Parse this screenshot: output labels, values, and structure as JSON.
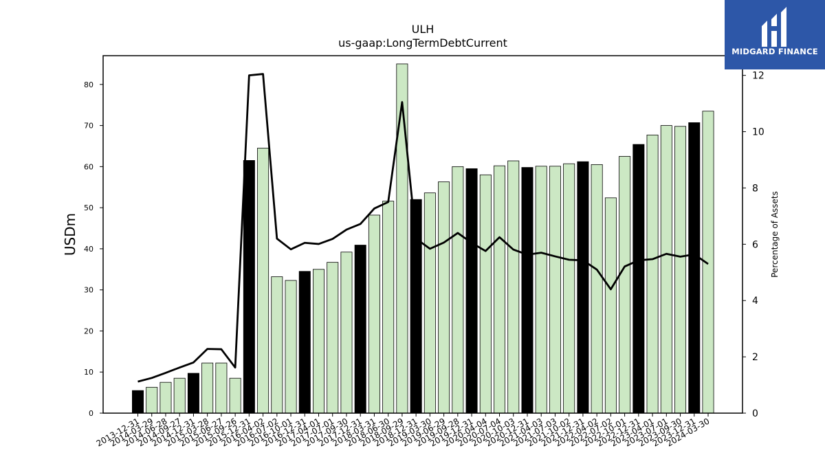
{
  "chart_data": {
    "type": "bar",
    "title": "ULH",
    "subtitle": "us-gaap:LongTermDebtCurrent",
    "ylabel": "USDm",
    "y2label": "Percentage of Assets",
    "ylim": [
      0,
      87
    ],
    "y2lim": [
      0,
      12.7
    ],
    "yticks": [
      0,
      10,
      20,
      30,
      40,
      50,
      60,
      70,
      80
    ],
    "y2ticks": [
      0,
      2,
      4,
      6,
      8,
      10,
      12
    ],
    "categories": [
      "2013-12-31",
      "2014-03-29",
      "2014-06-28",
      "2014-09-27",
      "2014-12-31",
      "2015-03-28",
      "2015-06-27",
      "2015-09-26",
      "2015-12-31",
      "2016-04-02",
      "2016-07-02",
      "2016-10-01",
      "2016-12-31",
      "2017-04-01",
      "2017-07-01",
      "2017-09-30",
      "2017-12-31",
      "2018-03-31",
      "2018-06-30",
      "2018-09-29",
      "2018-12-31",
      "2019-03-30",
      "2019-06-29",
      "2019-09-28",
      "2019-12-31",
      "2020-04-04",
      "2020-07-04",
      "2020-10-03",
      "2020-12-31",
      "2021-04-03",
      "2021-07-03",
      "2021-10-02",
      "2021-12-31",
      "2022-04-02",
      "2022-07-02",
      "2022-10-01",
      "2022-12-31",
      "2023-04-01",
      "2023-07-01",
      "2023-09-30",
      "2023-12-31",
      "2024-03-30"
    ],
    "series": [
      {
        "type": "bar",
        "values": [
          5.5,
          6.3,
          7.5,
          8.5,
          9.7,
          12.2,
          12.2,
          8.5,
          61.5,
          64.5,
          33.2,
          32.3,
          34.5,
          35.0,
          36.7,
          39.2,
          40.9,
          48.2,
          51.6,
          85.0,
          52.0,
          53.6,
          56.3,
          60.0,
          59.5,
          58.0,
          60.2,
          61.4,
          59.8,
          60.1,
          60.1,
          60.7,
          61.2,
          60.5,
          52.4,
          62.5,
          65.4,
          67.7,
          70.0,
          69.8,
          70.7,
          73.5
        ]
      },
      {
        "type": "line",
        "axis": "right",
        "values": [
          1.12,
          1.25,
          1.43,
          1.62,
          1.8,
          2.28,
          2.27,
          1.62,
          12.0,
          12.05,
          6.2,
          5.82,
          6.05,
          6.01,
          6.19,
          6.52,
          6.72,
          7.27,
          7.5,
          11.05,
          6.2,
          5.84,
          6.06,
          6.4,
          6.05,
          5.76,
          6.25,
          5.81,
          5.63,
          5.7,
          5.57,
          5.45,
          5.43,
          5.1,
          4.4,
          5.21,
          5.43,
          5.47,
          5.66,
          5.56,
          5.64,
          5.3
        ]
      }
    ],
    "highlight_color": "#000000",
    "bar_color": "#cce8c4",
    "line_color": "#000000",
    "grid": false
  },
  "logo": {
    "text": "MIDGARD FINANCE",
    "background": "#2d57a8"
  }
}
